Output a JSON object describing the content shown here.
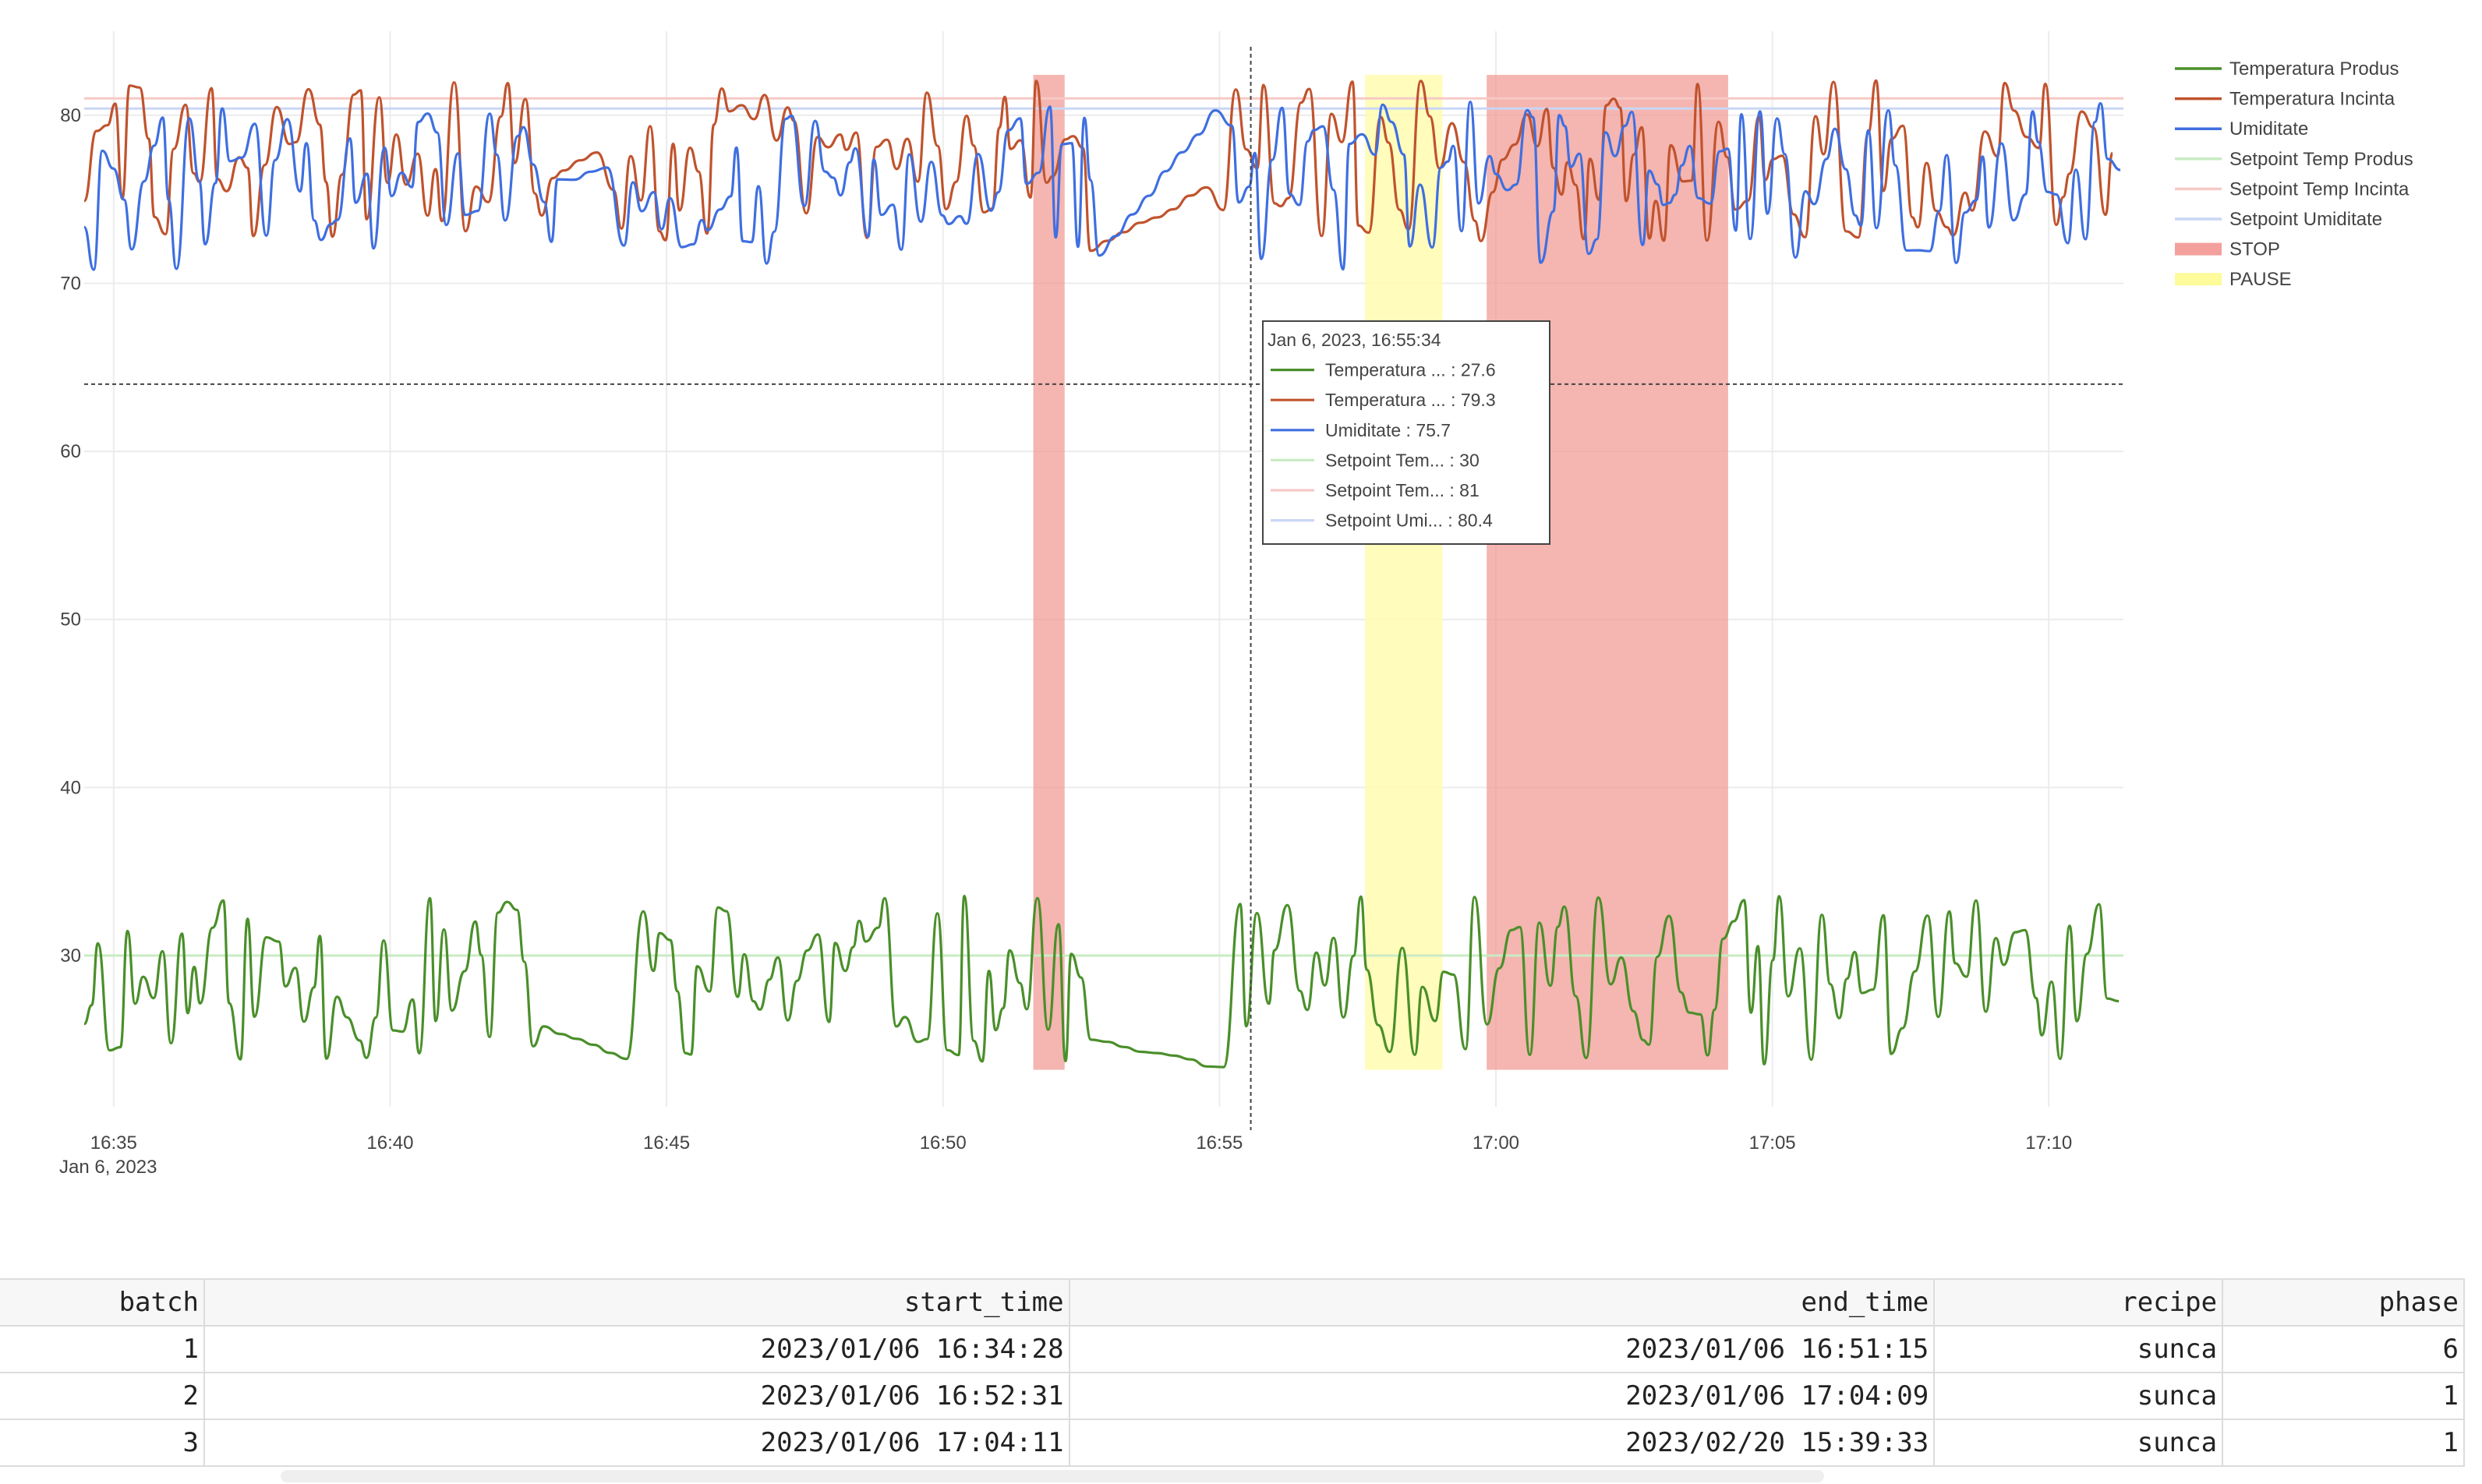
{
  "chart_data": {
    "type": "line",
    "x_ticks": [
      "16:35",
      "16:40",
      "16:45",
      "16:50",
      "16:55",
      "17:00",
      "17:05",
      "17:10"
    ],
    "x_tick_minutes": [
      35,
      40,
      45,
      50,
      55,
      60,
      65,
      70
    ],
    "x_sub_label": "Jan 6, 2023",
    "y_ticks": [
      30,
      40,
      50,
      60,
      70,
      80
    ],
    "xlim": [
      "16:34:28",
      "17:11:21"
    ],
    "ylim": [
      21,
      85
    ],
    "grid": true,
    "legend_position": "top-right",
    "hover_y_line": 64,
    "series": [
      {
        "name": "Temperatura Produs",
        "color": "#4a8f2a",
        "kind": "trace"
      },
      {
        "name": "Temperatura Incinta",
        "color": "#c0532d",
        "kind": "trace"
      },
      {
        "name": "Umiditate",
        "color": "#3f6fe0",
        "kind": "trace"
      },
      {
        "name": "Setpoint Temp Produs",
        "color": "#c9ebc3",
        "kind": "setpoint",
        "value": 30
      },
      {
        "name": "Setpoint Temp Incinta",
        "color": "#f6c9c6",
        "kind": "setpoint",
        "value": 81
      },
      {
        "name": "Setpoint Umiditate",
        "color": "#c9d6f6",
        "kind": "setpoint",
        "value": 80.4
      }
    ],
    "legend": [
      {
        "label": "Temperatura Produs",
        "color": "#4a8f2a",
        "style": "line"
      },
      {
        "label": "Temperatura Incinta",
        "color": "#c0532d",
        "style": "line"
      },
      {
        "label": "Umiditate",
        "color": "#3f6fe0",
        "style": "line"
      },
      {
        "label": "Setpoint Temp Produs",
        "color": "#c9ebc3",
        "style": "line"
      },
      {
        "label": "Setpoint Temp Incinta",
        "color": "#f6c9c6",
        "style": "line"
      },
      {
        "label": "Setpoint Umiditate",
        "color": "#c9d6f6",
        "style": "line"
      },
      {
        "label": "STOP",
        "color": "#f4a09c",
        "style": "box"
      },
      {
        "label": "PAUSE",
        "color": "#fdfb9a",
        "style": "box"
      }
    ],
    "regions": [
      {
        "type": "STOP",
        "start": "16:51:38",
        "end": "16:52:12",
        "color": "#f19c96"
      },
      {
        "type": "PAUSE",
        "start": "16:57:38",
        "end": "16:59:02",
        "color": "#fffcb0"
      },
      {
        "type": "STOP",
        "start": "16:59:50",
        "end": "17:04:12",
        "color": "#f19c96"
      }
    ],
    "hover": {
      "time": "16:55:34",
      "title": "Jan 6, 2023, 16:55:34",
      "rows": [
        {
          "label": "Temperatura ... : 27.6",
          "color": "#4a8f2a"
        },
        {
          "label": "Temperatura ... : 79.3",
          "color": "#c0532d"
        },
        {
          "label": "Umiditate : 75.7",
          "color": "#3f6fe0"
        },
        {
          "label": "Setpoint Tem... : 30",
          "color": "#c9ebc3"
        },
        {
          "label": "Setpoint Tem... : 81",
          "color": "#f6c9c6"
        },
        {
          "label": "Setpoint Umi... : 80.4",
          "color": "#c9d6f6"
        }
      ]
    }
  },
  "table": {
    "columns": [
      "batch",
      "start_time",
      "end_time",
      "recipe",
      "phase"
    ],
    "rows": [
      [
        "1",
        "2023/01/06 16:34:28",
        "2023/01/06 16:51:15",
        "sunca",
        "6"
      ],
      [
        "2",
        "2023/01/06 16:52:31",
        "2023/01/06 17:04:09",
        "sunca",
        "1"
      ],
      [
        "3",
        "2023/01/06 17:04:11",
        "2023/02/20 15:39:33",
        "sunca",
        "1"
      ]
    ]
  }
}
